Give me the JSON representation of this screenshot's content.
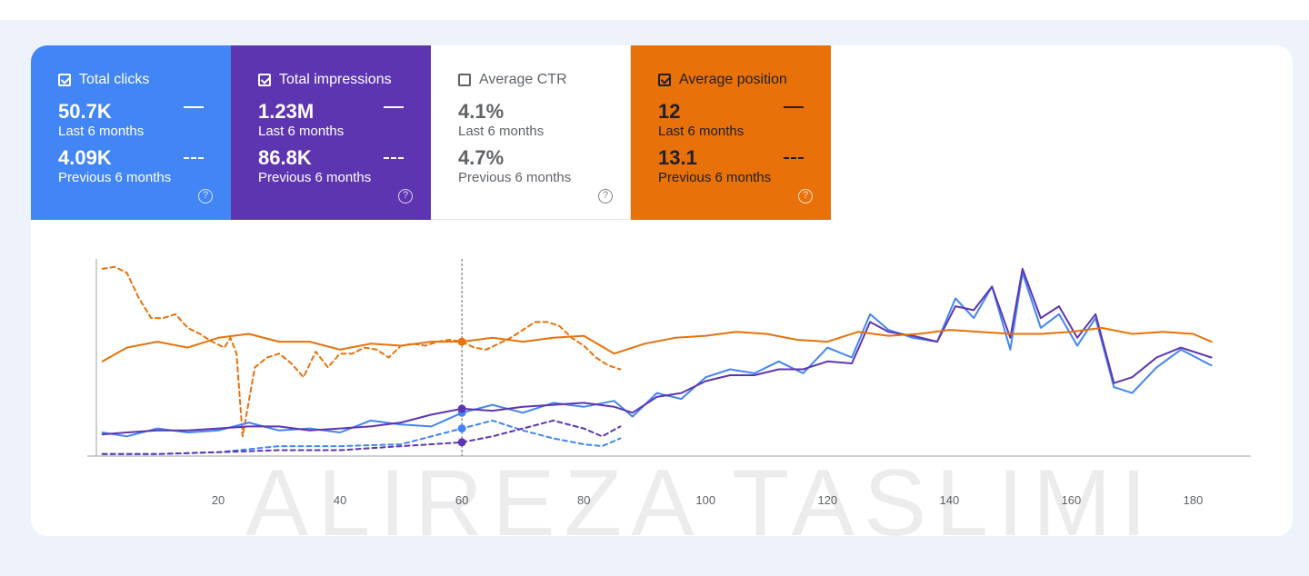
{
  "watermark": "ALIREZA TASLIMI",
  "cards": [
    {
      "label": "Total clicks",
      "checked": true,
      "current": "50.7K",
      "current_label": "Last 6 months",
      "previous": "4.09K",
      "previous_label": "Previous 6 months",
      "help": "?",
      "color": "#4285f4"
    },
    {
      "label": "Total impressions",
      "checked": true,
      "current": "1.23M",
      "current_label": "Last 6 months",
      "previous": "86.8K",
      "previous_label": "Previous 6 months",
      "help": "?",
      "color": "#5e35b1"
    },
    {
      "label": "Average CTR",
      "checked": false,
      "current": "4.1%",
      "current_label": "Last 6 months",
      "previous": "4.7%",
      "previous_label": "Previous 6 months",
      "help": "?",
      "color": "#ffffff"
    },
    {
      "label": "Average position",
      "checked": true,
      "current": "12",
      "current_label": "Last 6 months",
      "previous": "13.1",
      "previous_label": "Previous 6 months",
      "help": "?",
      "color": "#e8710a"
    }
  ],
  "chart_data": {
    "type": "line",
    "x_ticks": [
      "20",
      "40",
      "60",
      "80",
      "100",
      "120",
      "140",
      "160",
      "180"
    ],
    "xlim": [
      0,
      185
    ],
    "ylim": [
      0,
      100
    ],
    "hover_day": 60,
    "series": [
      {
        "name": "Total clicks",
        "color": "#4285f4",
        "dashed": false,
        "x": [
          1,
          5,
          10,
          15,
          20,
          25,
          30,
          35,
          40,
          45,
          50,
          55,
          60,
          65,
          70,
          75,
          80,
          85,
          88,
          92,
          96,
          100,
          104,
          108,
          112,
          116,
          120,
          124,
          127,
          130,
          134,
          138,
          141,
          144,
          147,
          150,
          152,
          155,
          158,
          161,
          164,
          167,
          170,
          174,
          178,
          183
        ],
        "y": [
          12,
          10,
          14,
          12,
          13,
          17,
          13,
          14,
          12,
          18,
          16,
          15,
          22,
          26,
          22,
          27,
          25,
          28,
          20,
          32,
          29,
          40,
          44,
          42,
          48,
          42,
          55,
          50,
          72,
          64,
          60,
          58,
          80,
          70,
          86,
          54,
          93,
          65,
          72,
          56,
          70,
          35,
          32,
          45,
          54,
          46
        ]
      },
      {
        "name": "Total impressions",
        "color": "#5e35b1",
        "dashed": false,
        "x": [
          1,
          5,
          10,
          15,
          20,
          25,
          30,
          35,
          40,
          45,
          50,
          55,
          60,
          65,
          70,
          75,
          80,
          85,
          88,
          92,
          96,
          100,
          104,
          108,
          112,
          116,
          120,
          124,
          127,
          130,
          134,
          138,
          141,
          144,
          147,
          150,
          152,
          155,
          158,
          161,
          164,
          167,
          170,
          174,
          178,
          183
        ],
        "y": [
          11,
          12,
          13,
          13,
          14,
          15,
          15,
          13,
          14,
          15,
          17,
          21,
          24,
          23,
          25,
          26,
          27,
          25,
          22,
          30,
          32,
          38,
          41,
          41,
          44,
          44,
          48,
          47,
          68,
          63,
          61,
          58,
          76,
          74,
          86,
          60,
          95,
          70,
          76,
          60,
          72,
          37,
          40,
          50,
          55,
          50
        ]
      },
      {
        "name": "Average position",
        "color": "#e8710a",
        "dashed": false,
        "x": [
          1,
          5,
          10,
          15,
          20,
          25,
          30,
          35,
          40,
          45,
          50,
          55,
          60,
          65,
          70,
          75,
          80,
          85,
          90,
          95,
          100,
          105,
          110,
          115,
          120,
          125,
          130,
          135,
          140,
          145,
          150,
          155,
          160,
          165,
          170,
          175,
          180,
          183
        ],
        "y": [
          48,
          55,
          58,
          55,
          60,
          62,
          58,
          58,
          54,
          57,
          56,
          58,
          58,
          60,
          58,
          60,
          61,
          52,
          57,
          60,
          61,
          63,
          62,
          59,
          58,
          63,
          61,
          62,
          64,
          63,
          62,
          62,
          63,
          65,
          62,
          63,
          62,
          58
        ]
      },
      {
        "name": "Total clicks (previous)",
        "color": "#4285f4",
        "dashed": true,
        "x": [
          1,
          10,
          20,
          30,
          40,
          50,
          55,
          60,
          65,
          70,
          75,
          80,
          83,
          86
        ],
        "y": [
          1,
          1,
          2,
          5,
          5,
          6,
          10,
          14,
          18,
          13,
          9,
          6,
          5,
          9
        ]
      },
      {
        "name": "Total impressions (previous)",
        "color": "#5e35b1",
        "dashed": true,
        "x": [
          1,
          10,
          20,
          30,
          40,
          50,
          55,
          60,
          65,
          70,
          75,
          80,
          83,
          86
        ],
        "y": [
          1,
          1,
          2,
          3,
          3,
          5,
          6,
          7,
          10,
          14,
          18,
          14,
          10,
          15
        ]
      },
      {
        "name": "Average position (previous)",
        "color": "#e8710a",
        "dashed": true,
        "x": [
          1,
          3,
          5,
          7,
          9,
          11,
          13,
          15,
          17,
          19,
          21,
          22,
          23,
          24,
          26,
          28,
          30,
          32,
          34,
          36,
          38,
          40,
          42,
          44,
          46,
          48,
          50,
          52,
          54,
          56,
          58,
          60,
          62,
          64,
          66,
          68,
          70,
          72,
          74,
          76,
          78,
          80,
          82,
          84,
          86
        ],
        "y": [
          95,
          96,
          93,
          80,
          70,
          70,
          72,
          65,
          62,
          58,
          55,
          60,
          52,
          10,
          45,
          50,
          52,
          47,
          40,
          53,
          45,
          52,
          52,
          55,
          54,
          50,
          56,
          57,
          56,
          58,
          59,
          58,
          55,
          54,
          57,
          60,
          64,
          68,
          68,
          66,
          60,
          56,
          50,
          46,
          44
        ]
      }
    ]
  }
}
